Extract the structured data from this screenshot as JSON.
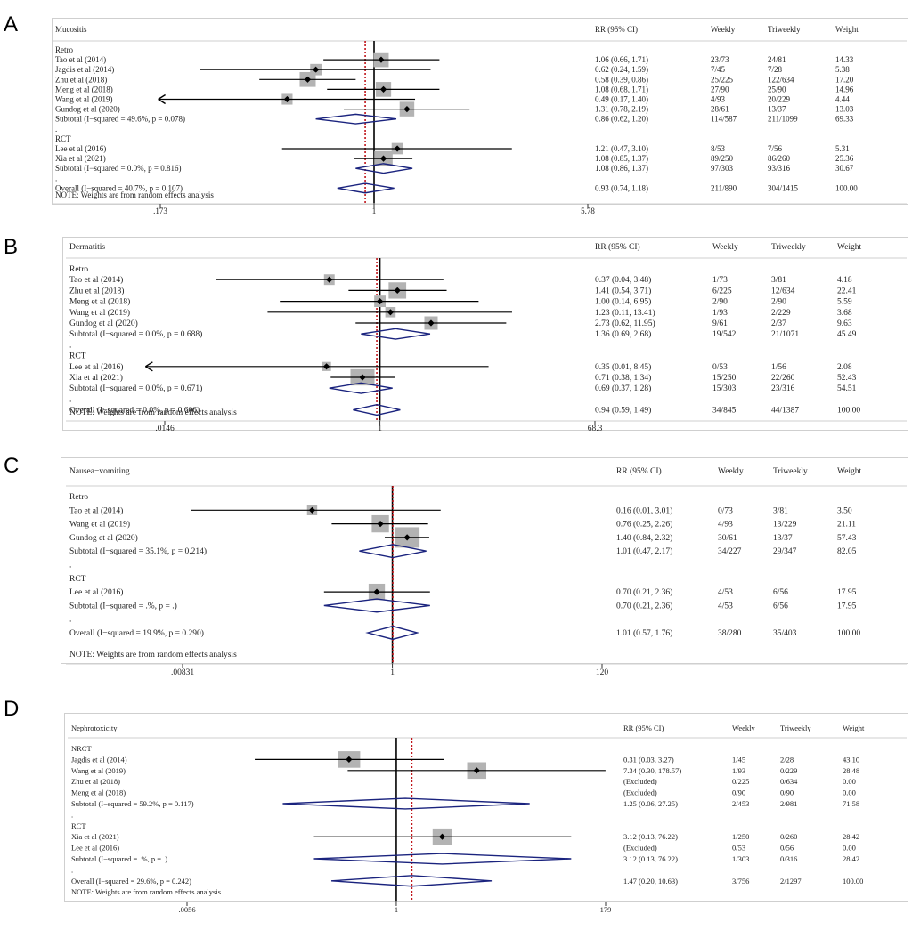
{
  "chart_data": [
    {
      "type": "forest",
      "panel_label": "A",
      "title": "Mucositis",
      "columns": [
        "RR (95% CI)",
        "Weekly",
        "Triweekly",
        "Weight"
      ],
      "axis": {
        "scale": "log",
        "ticks": [
          "0.173",
          "1",
          "5.78"
        ],
        "tick_labels": [
          ".173",
          "1",
          "5.78"
        ],
        "range": [
          0.173,
          5.78
        ]
      },
      "overall_rr": 0.93,
      "rows": [
        {
          "kind": "group",
          "label": "Retro"
        },
        {
          "kind": "study",
          "label": "Tao et al (2014)",
          "rr": 1.06,
          "lo": 0.66,
          "hi": 1.71,
          "ci": "1.06 (0.66, 1.71)",
          "weekly": "23/73",
          "tri": "24/81",
          "weight": "14.33",
          "w": 14.33
        },
        {
          "kind": "study",
          "label": "Jagdis et al (2014)",
          "rr": 0.62,
          "lo": 0.24,
          "hi": 1.59,
          "ci": "0.62 (0.24, 1.59)",
          "weekly": "7/45",
          "tri": "7/28",
          "weight": "5.38",
          "w": 5.38
        },
        {
          "kind": "study",
          "label": "Zhu et al (2018)",
          "rr": 0.58,
          "lo": 0.39,
          "hi": 0.86,
          "ci": "0.58 (0.39, 0.86)",
          "weekly": "25/225",
          "tri": "122/634",
          "weight": "17.20",
          "w": 17.2
        },
        {
          "kind": "study",
          "label": "Meng et al (2018)",
          "rr": 1.08,
          "lo": 0.68,
          "hi": 1.71,
          "ci": "1.08 (0.68, 1.71)",
          "weekly": "27/90",
          "tri": "25/90",
          "weight": "14.96",
          "w": 14.96
        },
        {
          "kind": "study",
          "label": "Wang et al (2019)",
          "rr": 0.49,
          "lo": 0.17,
          "hi": 1.4,
          "ci": "0.49 (0.17, 1.40)",
          "weekly": "4/93",
          "tri": "20/229",
          "weight": "4.44",
          "w": 4.44,
          "arrow_left": true
        },
        {
          "kind": "study",
          "label": "Gundog et al (2020)",
          "rr": 1.31,
          "lo": 0.78,
          "hi": 2.19,
          "ci": "1.31 (0.78, 2.19)",
          "weekly": "28/61",
          "tri": "13/37",
          "weight": "13.03",
          "w": 13.03
        },
        {
          "kind": "subtotal",
          "label": "Subtotal  (I−squared = 49.6%, p = 0.078)",
          "rr": 0.86,
          "lo": 0.62,
          "hi": 1.2,
          "ci": "0.86 (0.62, 1.20)",
          "weekly": "114/587",
          "tri": "211/1099",
          "weight": "69.33"
        },
        {
          "kind": "dot",
          "label": "."
        },
        {
          "kind": "group",
          "label": "RCT"
        },
        {
          "kind": "study",
          "label": "Lee et al (2016)",
          "rr": 1.21,
          "lo": 0.47,
          "hi": 3.1,
          "ci": "1.21 (0.47, 3.10)",
          "weekly": "8/53",
          "tri": "7/56",
          "weight": "5.31",
          "w": 5.31
        },
        {
          "kind": "study",
          "label": "Xia et al (2021)",
          "rr": 1.08,
          "lo": 0.85,
          "hi": 1.37,
          "ci": "1.08 (0.85, 1.37)",
          "weekly": "89/250",
          "tri": "86/260",
          "weight": "25.36",
          "w": 25.36
        },
        {
          "kind": "subtotal",
          "label": "Subtotal  (I−squared = 0.0%, p = 0.816)",
          "rr": 1.08,
          "lo": 0.86,
          "hi": 1.37,
          "ci": "1.08 (0.86, 1.37)",
          "weekly": "97/303",
          "tri": "93/316",
          "weight": "30.67"
        },
        {
          "kind": "dot",
          "label": "."
        },
        {
          "kind": "overall",
          "label": "Overall  (I−squared = 40.7%, p = 0.107)",
          "rr": 0.93,
          "lo": 0.74,
          "hi": 1.18,
          "ci": "0.93 (0.74, 1.18)",
          "weekly": "211/890",
          "tri": "304/1415",
          "weight": "100.00"
        }
      ],
      "note": "NOTE: Weights are from random effects analysis"
    },
    {
      "type": "forest",
      "panel_label": "B",
      "title": "Dermatitis",
      "columns": [
        "RR (95% CI)",
        "Weekly",
        "Triweekly",
        "Weight"
      ],
      "axis": {
        "scale": "log",
        "ticks": [
          "0.0146",
          "1",
          "68.3"
        ],
        "tick_labels": [
          ".0146",
          "1",
          "68.3"
        ],
        "range": [
          0.0146,
          68.3
        ]
      },
      "overall_rr": 0.94,
      "rows": [
        {
          "kind": "group",
          "label": "Retro"
        },
        {
          "kind": "study",
          "label": "Tao et al (2014)",
          "rr": 0.37,
          "lo": 0.04,
          "hi": 3.48,
          "ci": "0.37 (0.04, 3.48)",
          "weekly": "1/73",
          "tri": "3/81",
          "weight": "4.18",
          "w": 4.18
        },
        {
          "kind": "study",
          "label": "Zhu et al (2018)",
          "rr": 1.41,
          "lo": 0.54,
          "hi": 3.71,
          "ci": "1.41 (0.54, 3.71)",
          "weekly": "6/225",
          "tri": "12/634",
          "weight": "22.41",
          "w": 22.41
        },
        {
          "kind": "study",
          "label": "Meng et al (2018)",
          "rr": 1.0,
          "lo": 0.14,
          "hi": 6.95,
          "ci": "1.00 (0.14, 6.95)",
          "weekly": "2/90",
          "tri": "2/90",
          "weight": "5.59",
          "w": 5.59
        },
        {
          "kind": "study",
          "label": "Wang et al (2019)",
          "rr": 1.23,
          "lo": 0.11,
          "hi": 13.41,
          "ci": "1.23 (0.11, 13.41)",
          "weekly": "1/93",
          "tri": "2/229",
          "weight": "3.68",
          "w": 3.68
        },
        {
          "kind": "study",
          "label": "Gundog et al (2020)",
          "rr": 2.73,
          "lo": 0.62,
          "hi": 11.95,
          "ci": "2.73 (0.62, 11.95)",
          "weekly": "9/61",
          "tri": "2/37",
          "weight": "9.63",
          "w": 9.63
        },
        {
          "kind": "subtotal",
          "label": "Subtotal  (I−squared = 0.0%, p = 0.688)",
          "rr": 1.36,
          "lo": 0.69,
          "hi": 2.68,
          "ci": "1.36 (0.69, 2.68)",
          "weekly": "19/542",
          "tri": "21/1071",
          "weight": "45.49"
        },
        {
          "kind": "dot",
          "label": "."
        },
        {
          "kind": "group",
          "label": "RCT"
        },
        {
          "kind": "study",
          "label": "Lee et al (2016)",
          "rr": 0.35,
          "lo": 0.01,
          "hi": 8.45,
          "ci": "0.35 (0.01, 8.45)",
          "weekly": "0/53",
          "tri": "1/56",
          "weight": "2.08",
          "w": 2.08,
          "arrow_left": true
        },
        {
          "kind": "study",
          "label": "Xia et al (2021)",
          "rr": 0.71,
          "lo": 0.38,
          "hi": 1.34,
          "ci": "0.71 (0.38, 1.34)",
          "weekly": "15/250",
          "tri": "22/260",
          "weight": "52.43",
          "w": 52.43
        },
        {
          "kind": "subtotal",
          "label": "Subtotal  (I−squared = 0.0%, p = 0.671)",
          "rr": 0.69,
          "lo": 0.37,
          "hi": 1.28,
          "ci": "0.69 (0.37, 1.28)",
          "weekly": "15/303",
          "tri": "23/316",
          "weight": "54.51"
        },
        {
          "kind": "dot",
          "label": "."
        },
        {
          "kind": "overall",
          "label": "Overall  (I−squared = 0.0%, p = 0.606)",
          "rr": 0.94,
          "lo": 0.59,
          "hi": 1.49,
          "ci": "0.94 (0.59, 1.49)",
          "weekly": "34/845",
          "tri": "44/1387",
          "weight": "100.00"
        }
      ],
      "note": "NOTE: Weights are from random effects analysis"
    },
    {
      "type": "forest",
      "panel_label": "C",
      "title": "Nausea−vomiting",
      "columns": [
        "RR (95% CI)",
        "Weekly",
        "Triweekly",
        "Weight"
      ],
      "axis": {
        "scale": "log",
        "ticks": [
          "0.00831",
          "1",
          "120"
        ],
        "tick_labels": [
          ".00831",
          "1",
          "120"
        ],
        "range": [
          0.00831,
          120
        ]
      },
      "overall_rr": 1.01,
      "rows": [
        {
          "kind": "group",
          "label": "Retro"
        },
        {
          "kind": "study",
          "label": "Tao et al (2014)",
          "rr": 0.16,
          "lo": 0.01,
          "hi": 3.01,
          "ci": "0.16 (0.01, 3.01)",
          "weekly": "0/73",
          "tri": "3/81",
          "weight": "3.50",
          "w": 3.5
        },
        {
          "kind": "study",
          "label": "Wang et al (2019)",
          "rr": 0.76,
          "lo": 0.25,
          "hi": 2.26,
          "ci": "0.76 (0.25, 2.26)",
          "weekly": "4/93",
          "tri": "13/229",
          "weight": "21.11",
          "w": 21.11
        },
        {
          "kind": "study",
          "label": "Gundog et al (2020)",
          "rr": 1.4,
          "lo": 0.84,
          "hi": 2.32,
          "ci": "1.40 (0.84, 2.32)",
          "weekly": "30/61",
          "tri": "13/37",
          "weight": "57.43",
          "w": 57.43
        },
        {
          "kind": "subtotal",
          "label": "Subtotal  (I−squared = 35.1%, p = 0.214)",
          "rr": 1.01,
          "lo": 0.47,
          "hi": 2.17,
          "ci": "1.01 (0.47, 2.17)",
          "weekly": "34/227",
          "tri": "29/347",
          "weight": "82.05"
        },
        {
          "kind": "dot",
          "label": "."
        },
        {
          "kind": "group",
          "label": "RCT"
        },
        {
          "kind": "study",
          "label": "Lee et al (2016)",
          "rr": 0.7,
          "lo": 0.21,
          "hi": 2.36,
          "ci": "0.70 (0.21, 2.36)",
          "weekly": "4/53",
          "tri": "6/56",
          "weight": "17.95",
          "w": 17.95
        },
        {
          "kind": "subtotal",
          "label": "Subtotal  (I−squared = .%, p = .)",
          "rr": 0.7,
          "lo": 0.21,
          "hi": 2.36,
          "ci": "0.70 (0.21, 2.36)",
          "weekly": "4/53",
          "tri": "6/56",
          "weight": "17.95"
        },
        {
          "kind": "dot",
          "label": "."
        },
        {
          "kind": "overall",
          "label": "Overall  (I−squared = 19.9%, p = 0.290)",
          "rr": 1.01,
          "lo": 0.57,
          "hi": 1.76,
          "ci": "1.01 (0.57, 1.76)",
          "weekly": "38/280",
          "tri": "35/403",
          "weight": "100.00"
        }
      ],
      "note": "NOTE: Weights are from random effects analysis"
    },
    {
      "type": "forest",
      "panel_label": "D",
      "title": "Nephrotoxicity",
      "columns": [
        "RR (95% CI)",
        "Weekly",
        "Triweekly",
        "Weight"
      ],
      "axis": {
        "scale": "log",
        "ticks": [
          "0.0056",
          "1",
          "179"
        ],
        "tick_labels": [
          ".0056",
          "1",
          "179"
        ],
        "range": [
          0.0056,
          179
        ]
      },
      "overall_rr": 1.47,
      "rows": [
        {
          "kind": "group",
          "label": "NRCT"
        },
        {
          "kind": "study",
          "label": "Jagdis et al (2014)",
          "rr": 0.31,
          "lo": 0.03,
          "hi": 3.27,
          "ci": "0.31 (0.03, 3.27)",
          "weekly": "1/45",
          "tri": "2/28",
          "weight": "43.10",
          "w": 43.1
        },
        {
          "kind": "study",
          "label": "Wang et al (2019)",
          "rr": 7.34,
          "lo": 0.3,
          "hi": 178.57,
          "ci": "7.34 (0.30, 178.57)",
          "weekly": "1/93",
          "tri": "0/229",
          "weight": "28.48",
          "w": 28.48
        },
        {
          "kind": "study",
          "label": "Zhu et al (2018)",
          "ci": "(Excluded)",
          "weekly": "0/225",
          "tri": "0/634",
          "weight": "0.00",
          "excluded": true
        },
        {
          "kind": "study",
          "label": "Meng et al (2018)",
          "ci": "(Excluded)",
          "weekly": "0/90",
          "tri": "0/90",
          "weight": "0.00",
          "excluded": true
        },
        {
          "kind": "subtotal",
          "label": "Subtotal  (I−squared = 59.2%, p = 0.117)",
          "rr": 1.25,
          "lo": 0.06,
          "hi": 27.25,
          "ci": "1.25 (0.06, 27.25)",
          "weekly": "2/453",
          "tri": "2/981",
          "weight": "71.58"
        },
        {
          "kind": "dot",
          "label": "."
        },
        {
          "kind": "group",
          "label": "RCT"
        },
        {
          "kind": "study",
          "label": "Xia et al (2021)",
          "rr": 3.12,
          "lo": 0.13,
          "hi": 76.22,
          "ci": "3.12 (0.13, 76.22)",
          "weekly": "1/250",
          "tri": "0/260",
          "weight": "28.42",
          "w": 28.42
        },
        {
          "kind": "study",
          "label": "Lee et al (2016)",
          "ci": "(Excluded)",
          "weekly": "0/53",
          "tri": "0/56",
          "weight": "0.00",
          "excluded": true
        },
        {
          "kind": "subtotal",
          "label": "Subtotal  (I−squared = .%, p = .)",
          "rr": 3.12,
          "lo": 0.13,
          "hi": 76.22,
          "ci": "3.12 (0.13, 76.22)",
          "weekly": "1/303",
          "tri": "0/316",
          "weight": "28.42"
        },
        {
          "kind": "dot",
          "label": "."
        },
        {
          "kind": "overall",
          "label": "Overall  (I−squared = 29.6%, p = 0.242)",
          "rr": 1.47,
          "lo": 0.2,
          "hi": 10.63,
          "ci": "1.47 (0.20, 10.63)",
          "weekly": "3/756",
          "tri": "2/1297",
          "weight": "100.00"
        }
      ],
      "note": "NOTE: Weights are from random effects analysis"
    }
  ],
  "colors": {
    "box": "#b3b3b3",
    "diamond": "#1a237e",
    "ref_line": "#000000",
    "overall_line": "#c0151b",
    "text": "#222222"
  }
}
